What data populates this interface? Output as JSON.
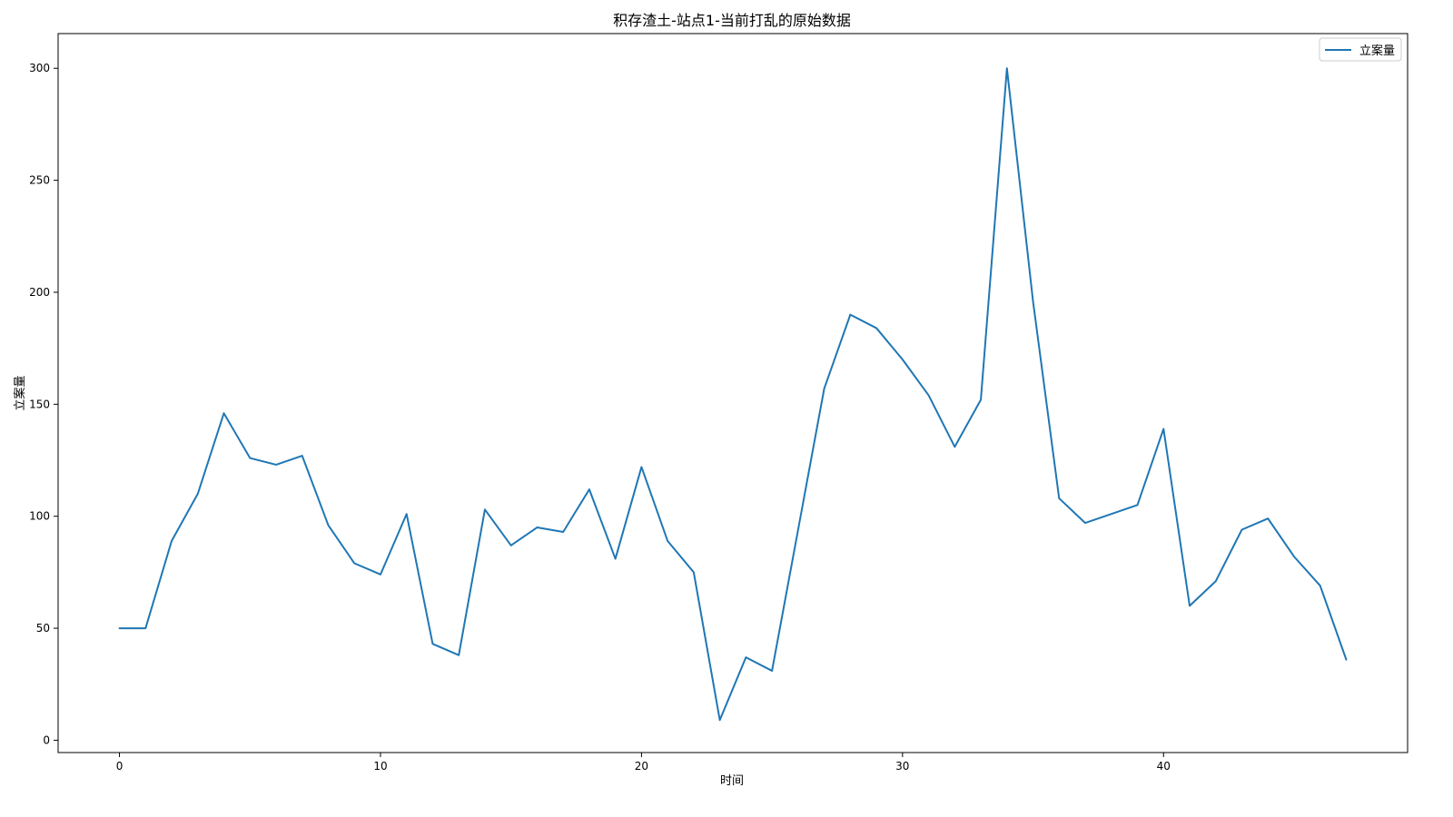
{
  "chart_data": {
    "type": "line",
    "title": "积存渣土-站点1-当前打乱的原始数据",
    "xlabel": "时间",
    "ylabel": "立案量",
    "xlim": [
      -2.35,
      49.35
    ],
    "ylim": [
      -5.5,
      315.5
    ],
    "xticks": [
      0,
      10,
      20,
      30,
      40
    ],
    "yticks": [
      0,
      50,
      100,
      150,
      200,
      250,
      300
    ],
    "grid": false,
    "legend_position": "top-right",
    "series": [
      {
        "name": "立案量",
        "color": "#1f77b4",
        "x": [
          0,
          1,
          2,
          3,
          4,
          5,
          6,
          7,
          8,
          9,
          10,
          11,
          12,
          13,
          14,
          15,
          16,
          17,
          18,
          19,
          20,
          21,
          22,
          23,
          24,
          25,
          26,
          27,
          28,
          29,
          30,
          31,
          32,
          33,
          34,
          35,
          36,
          37,
          38,
          39,
          40,
          41,
          42,
          43,
          44,
          45,
          46,
          47
        ],
        "values": [
          50,
          50,
          89,
          110,
          146,
          126,
          123,
          127,
          96,
          79,
          74,
          101,
          43,
          38,
          103,
          87,
          95,
          93,
          112,
          81,
          122,
          89,
          75,
          9,
          37,
          31,
          94,
          157,
          190,
          184,
          170,
          154,
          131,
          152,
          300,
          196,
          108,
          97,
          101,
          105,
          139,
          60,
          71,
          94,
          99,
          82,
          69,
          36
        ]
      }
    ]
  }
}
